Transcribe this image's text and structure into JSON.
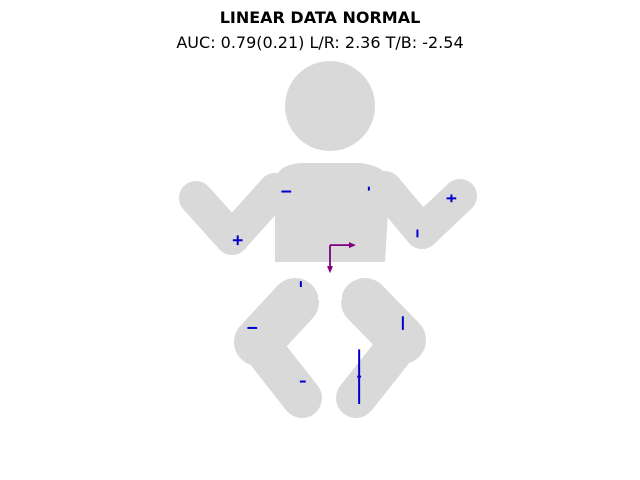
{
  "chart_data": {
    "type": "scatter",
    "title": "LINEAR DATA NORMAL",
    "subtitle": "AUC: 0.79(0.21) L/R: 2.36 T/B: -2.54",
    "figure_shape": "baby",
    "figure_color": "#d9d9d9",
    "marker_color": "#0000cc",
    "vector_color": "#7f007f",
    "grid": false,
    "legend": "none",
    "points": [
      {
        "id": "shoulder-left",
        "x": -0.45,
        "y": 0.55,
        "dx": 0.05,
        "dy": 0.0
      },
      {
        "id": "shoulder-right",
        "x": 0.4,
        "y": 0.58,
        "dx": 0.0,
        "dy": 0.02
      },
      {
        "id": "hand-right",
        "x": 1.25,
        "y": 0.48,
        "dx": 0.05,
        "dy": 0.04
      },
      {
        "id": "elbow-left",
        "x": -0.95,
        "y": 0.05,
        "dx": 0.05,
        "dy": 0.05
      },
      {
        "id": "elbow-right",
        "x": 0.9,
        "y": 0.12,
        "dx": 0.0,
        "dy": 0.04
      },
      {
        "id": "hip-left",
        "x": -0.3,
        "y": -0.4,
        "dx": 0.0,
        "dy": 0.03
      },
      {
        "id": "knee-left",
        "x": -0.8,
        "y": -0.85,
        "dx": 0.05,
        "dy": 0.0
      },
      {
        "id": "knee-right",
        "x": 0.75,
        "y": -0.8,
        "dx": 0.0,
        "dy": 0.07
      },
      {
        "id": "foot-left",
        "x": -0.28,
        "y": -1.4,
        "dx": 0.03,
        "dy": 0.0
      },
      {
        "id": "foot-right",
        "x": 0.3,
        "y": -1.35,
        "dx": 0.02,
        "dy": 0.28
      }
    ],
    "center_vectors": {
      "origin": {
        "x": 0.0,
        "y": 0.0
      },
      "lr": 2.36,
      "tb": -2.54
    },
    "xlim": [
      -1.75,
      1.75
    ],
    "ylim": [
      -2.0,
      1.9
    ]
  }
}
